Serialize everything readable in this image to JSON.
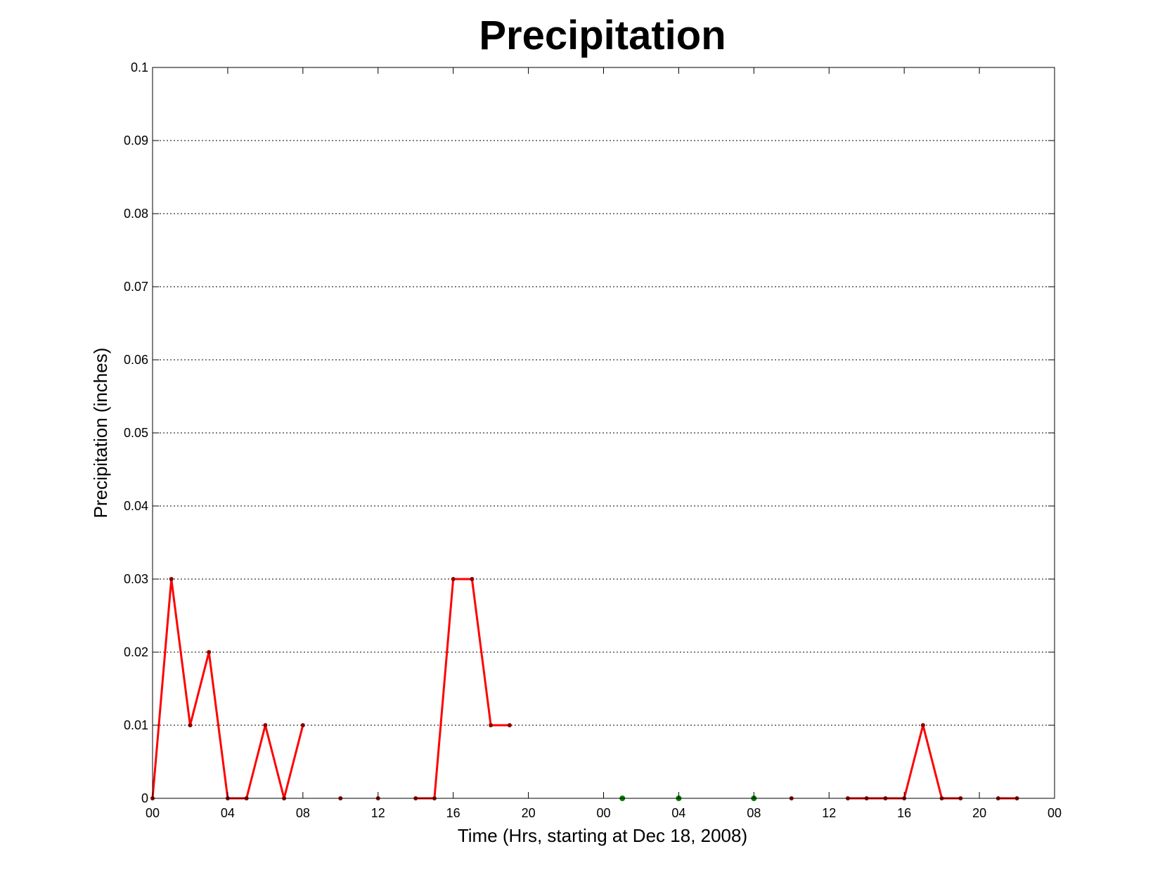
{
  "chart_data": {
    "type": "line",
    "title": "Precipitation",
    "xlabel": "Time (Hrs, starting at Dec 18, 2008)",
    "ylabel": "Precipitation (inches)",
    "xlim": [
      0,
      48
    ],
    "ylim": [
      0,
      0.1
    ],
    "grid": true,
    "x_ticks": [
      0,
      4,
      8,
      12,
      16,
      20,
      24,
      28,
      32,
      36,
      40,
      44,
      48
    ],
    "x_tick_labels": [
      "00",
      "04",
      "08",
      "12",
      "16",
      "20",
      "00",
      "04",
      "08",
      "12",
      "16",
      "20",
      "00"
    ],
    "y_ticks": [
      0,
      0.01,
      0.02,
      0.03,
      0.04,
      0.05,
      0.06,
      0.07,
      0.08,
      0.09,
      0.1
    ],
    "y_tick_labels": [
      "0",
      "0.01",
      "0.02",
      "0.03",
      "0.04",
      "0.05",
      "0.06",
      "0.07",
      "0.08",
      "0.09",
      "0.1"
    ],
    "line_color": "#ff0000",
    "marker_color": "#8b0000",
    "green_marker_color": "#008000",
    "series": [
      {
        "segments": [
          [
            [
              0,
              0
            ],
            [
              1,
              0.03
            ],
            [
              2,
              0.01
            ],
            [
              3,
              0.02
            ],
            [
              4,
              0
            ],
            [
              5,
              0
            ],
            [
              6,
              0.01
            ],
            [
              7,
              0
            ],
            [
              8,
              0.01
            ]
          ],
          [
            [
              10,
              0
            ]
          ],
          [
            [
              12,
              0
            ]
          ],
          [
            [
              14,
              0
            ],
            [
              15,
              0
            ],
            [
              16,
              0.03
            ],
            [
              17,
              0.03
            ],
            [
              18,
              0.01
            ],
            [
              19,
              0.01
            ]
          ],
          [
            [
              34,
              0
            ]
          ],
          [
            [
              37,
              0
            ],
            [
              38,
              0
            ],
            [
              39,
              0
            ],
            [
              40,
              0
            ],
            [
              41,
              0.01
            ],
            [
              42,
              0
            ],
            [
              43,
              0
            ]
          ],
          [
            [
              45,
              0
            ],
            [
              46,
              0
            ]
          ]
        ]
      }
    ],
    "green_points": [
      [
        25,
        0
      ],
      [
        28,
        0
      ],
      [
        32,
        0
      ]
    ]
  }
}
